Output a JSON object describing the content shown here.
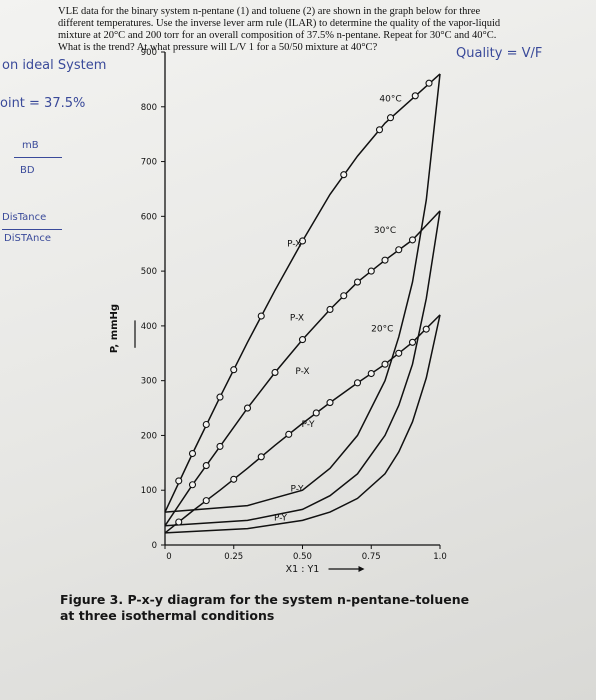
{
  "problem": {
    "line1": "VLE data for the binary system n-pentane (1) and toluene (2) are shown in the graph below for three",
    "line2": "different temperatures.  Use the inverse lever arm rule (ILAR) to determine the quality of the vapor-liquid",
    "line3": "mixture at 20°C and 200 torr for an overall composition of 37.5% n-pentane.  Repeat for 30°C and 40°C.",
    "line4": "What is the trend?  At what pressure will L/V 1 for a 50/50 mixture at 40°C?"
  },
  "handwriting": {
    "non_ideal": "on ideal System",
    "quality": "Quality = V/F",
    "point": "oint = 37.5%",
    "ratio_top": "mB",
    "ratio_bottom": "BD",
    "distance1": "DisTance",
    "distance2": "DiSTAnce"
  },
  "caption": {
    "line1": "Figure 3.  P-x-y diagram for the system n-pentane–toluene",
    "line2": "at three isothermal conditions"
  },
  "chart_data": {
    "type": "line",
    "ylabel": "P, mmHg",
    "xlabel": "X1 : Y1",
    "xlim": [
      0,
      1.0
    ],
    "ylim": [
      0,
      900
    ],
    "xticks": [
      0,
      0.25,
      0.5,
      0.75,
      1.0
    ],
    "xtick_labels": [
      "0",
      "0.25",
      "0.50",
      "0.75",
      "1.0"
    ],
    "yticks": [
      0,
      100,
      200,
      300,
      400,
      500,
      600,
      700,
      800,
      900
    ],
    "ytick_labels": [
      "0",
      "100",
      "200",
      "300",
      "400",
      "500",
      "600",
      "700",
      "800",
      "900"
    ],
    "grid": false,
    "series": [
      {
        "name": "40°C",
        "liquid": [
          [
            0,
            60
          ],
          [
            0.1,
            167
          ],
          [
            0.2,
            270
          ],
          [
            0.3,
            370
          ],
          [
            0.4,
            465
          ],
          [
            0.5,
            555
          ],
          [
            0.6,
            640
          ],
          [
            0.7,
            710
          ],
          [
            0.8,
            770
          ],
          [
            0.9,
            815
          ],
          [
            1.0,
            860
          ]
        ],
        "vapor": [
          [
            0,
            60
          ],
          [
            0.3,
            72
          ],
          [
            0.5,
            100
          ],
          [
            0.6,
            140
          ],
          [
            0.7,
            200
          ],
          [
            0.8,
            300
          ],
          [
            0.85,
            380
          ],
          [
            0.9,
            480
          ],
          [
            0.95,
            630
          ],
          [
            1.0,
            860
          ]
        ],
        "points": [
          [
            0.05,
            117
          ],
          [
            0.1,
            167
          ],
          [
            0.15,
            220
          ],
          [
            0.2,
            270
          ],
          [
            0.25,
            320
          ],
          [
            0.35,
            418
          ],
          [
            0.5,
            555
          ],
          [
            0.65,
            676
          ],
          [
            0.78,
            758
          ],
          [
            0.82,
            780
          ],
          [
            0.91,
            820
          ],
          [
            0.96,
            843
          ]
        ]
      },
      {
        "name": "30°C",
        "liquid": [
          [
            0,
            35
          ],
          [
            0.1,
            110
          ],
          [
            0.2,
            180
          ],
          [
            0.3,
            250
          ],
          [
            0.4,
            315
          ],
          [
            0.5,
            375
          ],
          [
            0.6,
            430
          ],
          [
            0.7,
            480
          ],
          [
            0.8,
            520
          ],
          [
            0.9,
            557
          ],
          [
            1.0,
            610
          ]
        ],
        "vapor": [
          [
            0,
            35
          ],
          [
            0.3,
            45
          ],
          [
            0.5,
            65
          ],
          [
            0.6,
            90
          ],
          [
            0.7,
            130
          ],
          [
            0.8,
            200
          ],
          [
            0.85,
            255
          ],
          [
            0.9,
            330
          ],
          [
            0.95,
            450
          ],
          [
            1.0,
            610
          ]
        ],
        "points": [
          [
            0.1,
            110
          ],
          [
            0.15,
            145
          ],
          [
            0.2,
            180
          ],
          [
            0.3,
            250
          ],
          [
            0.4,
            315
          ],
          [
            0.5,
            375
          ],
          [
            0.6,
            430
          ],
          [
            0.65,
            455
          ],
          [
            0.7,
            480
          ],
          [
            0.75,
            500
          ],
          [
            0.8,
            520
          ],
          [
            0.85,
            539
          ],
          [
            0.9,
            557
          ]
        ]
      },
      {
        "name": "20°C",
        "liquid": [
          [
            0,
            22
          ],
          [
            0.1,
            62
          ],
          [
            0.2,
            100
          ],
          [
            0.3,
            140
          ],
          [
            0.4,
            182
          ],
          [
            0.5,
            222
          ],
          [
            0.6,
            260
          ],
          [
            0.7,
            296
          ],
          [
            0.8,
            330
          ],
          [
            0.9,
            370
          ],
          [
            1.0,
            420
          ]
        ],
        "vapor": [
          [
            0,
            22
          ],
          [
            0.3,
            30
          ],
          [
            0.5,
            45
          ],
          [
            0.6,
            60
          ],
          [
            0.7,
            85
          ],
          [
            0.8,
            130
          ],
          [
            0.85,
            170
          ],
          [
            0.9,
            225
          ],
          [
            0.95,
            305
          ],
          [
            1.0,
            420
          ]
        ],
        "points": [
          [
            0.05,
            42
          ],
          [
            0.15,
            81
          ],
          [
            0.25,
            120
          ],
          [
            0.35,
            161
          ],
          [
            0.45,
            202
          ],
          [
            0.55,
            241
          ],
          [
            0.6,
            260
          ],
          [
            0.7,
            296
          ],
          [
            0.75,
            313
          ],
          [
            0.8,
            330
          ],
          [
            0.85,
            350
          ],
          [
            0.9,
            370
          ],
          [
            0.95,
            394
          ]
        ]
      }
    ],
    "annotations": [
      {
        "text": "40°C",
        "x": 0.82,
        "y": 810
      },
      {
        "text": "30°C",
        "x": 0.8,
        "y": 570
      },
      {
        "text": "20°C",
        "x": 0.79,
        "y": 390
      },
      {
        "text": "P-X",
        "x": 0.47,
        "y": 545
      },
      {
        "text": "P-X",
        "x": 0.48,
        "y": 410
      },
      {
        "text": "P-X",
        "x": 0.5,
        "y": 312
      },
      {
        "text": "P-Y",
        "x": 0.52,
        "y": 215
      },
      {
        "text": "P-Y",
        "x": 0.48,
        "y": 98
      },
      {
        "text": "P-Y",
        "x": 0.42,
        "y": 45
      }
    ]
  }
}
